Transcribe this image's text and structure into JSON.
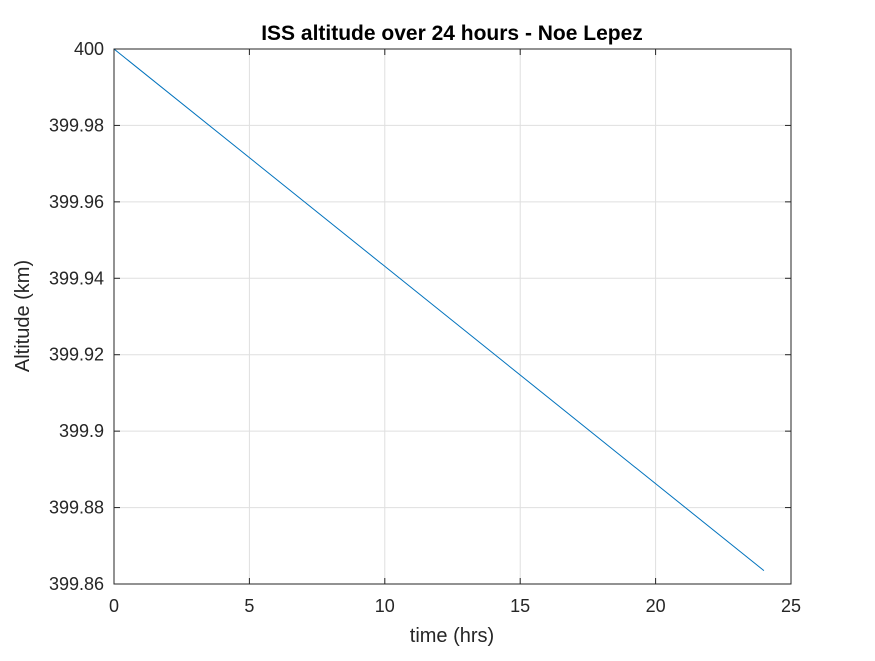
{
  "chart_data": {
    "type": "line",
    "title": "ISS altitude over 24 hours - Noe Lepez",
    "xlabel": "time (hrs)",
    "ylabel": "Altitude (km)",
    "xlim": [
      0,
      25
    ],
    "ylim": [
      399.86,
      400
    ],
    "xticks": [
      0,
      5,
      10,
      15,
      20,
      25
    ],
    "xtick_labels": [
      "0",
      "5",
      "10",
      "15",
      "20",
      "25"
    ],
    "yticks": [
      399.86,
      399.88,
      399.9,
      399.92,
      399.94,
      399.96,
      399.98,
      400
    ],
    "ytick_labels": [
      "399.86",
      "399.88",
      "399.9",
      "399.92",
      "399.94",
      "399.96",
      "399.98",
      "400"
    ],
    "grid": true,
    "series": [
      {
        "color": "#0072BD",
        "x": [
          0,
          24
        ],
        "y": [
          400,
          399.8635
        ]
      }
    ]
  }
}
